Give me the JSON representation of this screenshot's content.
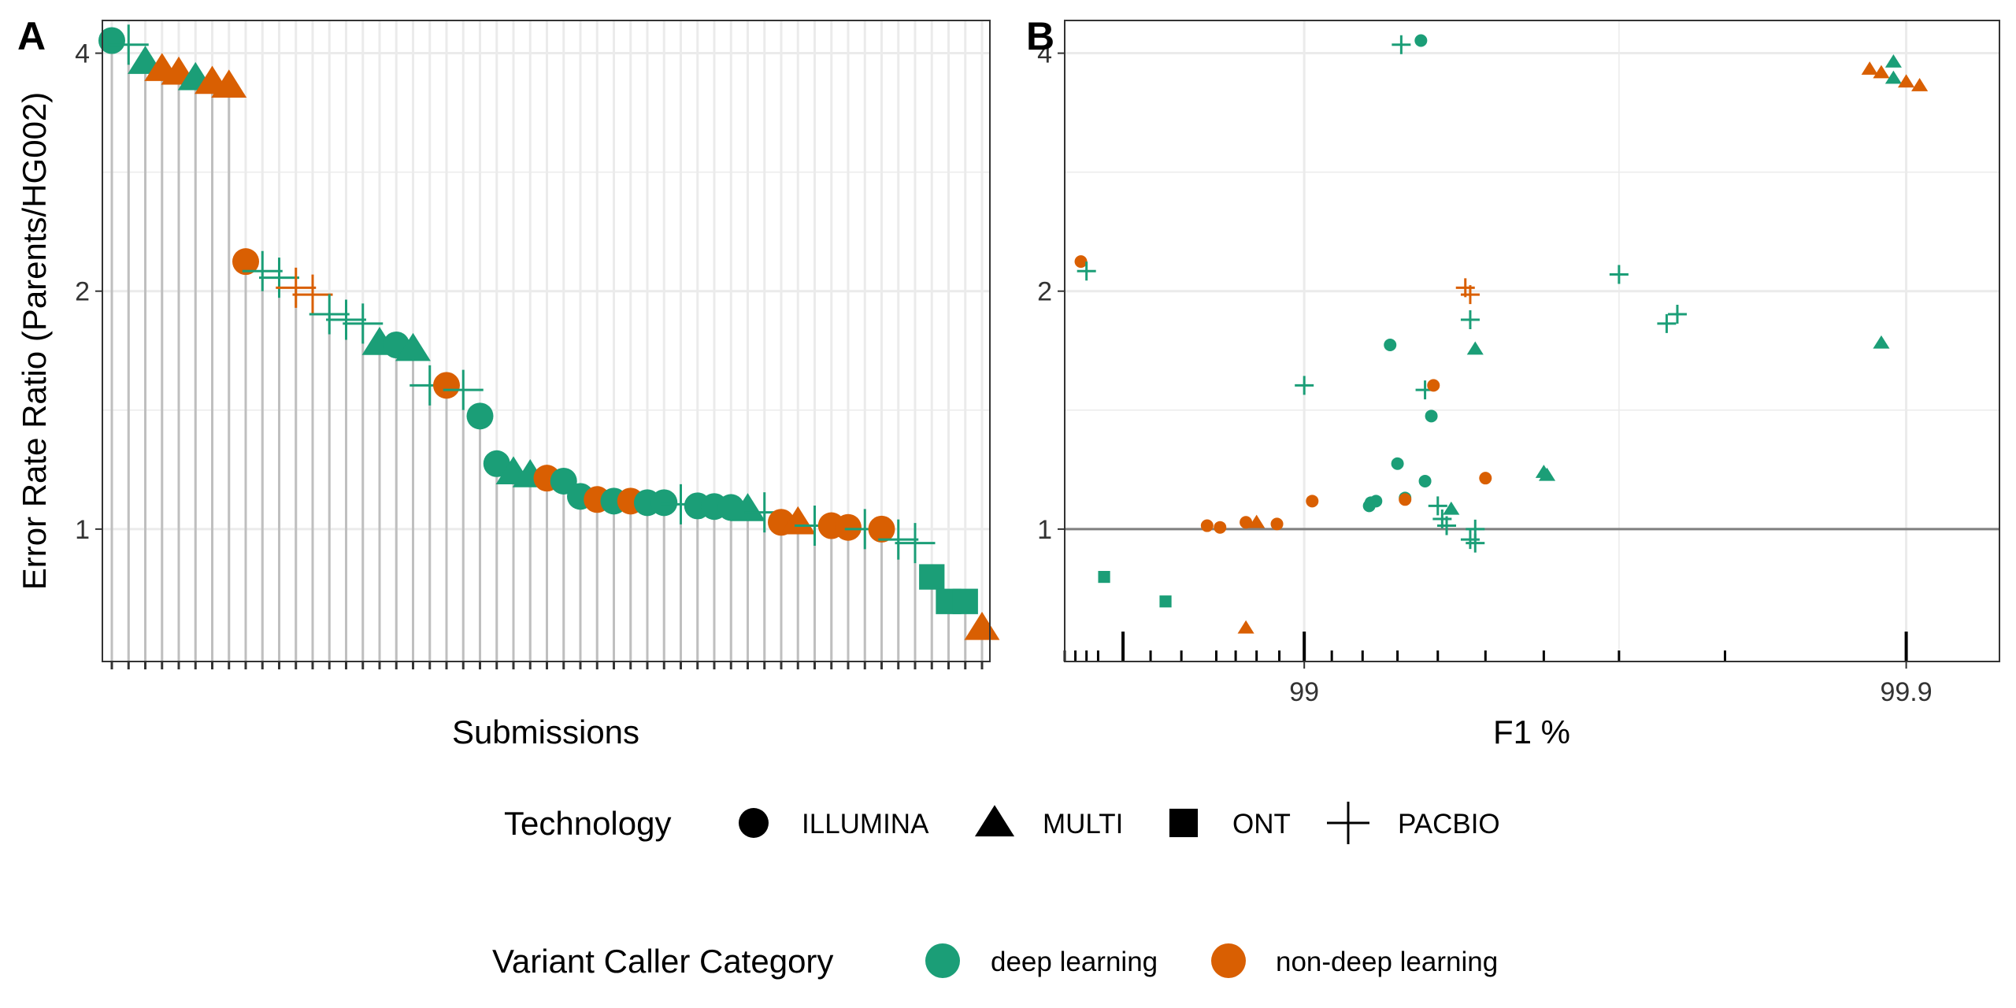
{
  "colors": {
    "deep learning": "#1b9e77",
    "non-deep learning": "#d95f02",
    "reference_line": "#808080",
    "gridline": "#ebebeb",
    "panel_border": "#333333",
    "legend_key": "#000000"
  },
  "chart_data": [
    {
      "panel": "A",
      "type": "scatter",
      "xlabel": "Submissions",
      "ylabel": "Error Rate Ratio (Parents/HG002)",
      "ylim": [
        0.68,
        4.4
      ],
      "y_scale": "log",
      "yticks": [
        1,
        2,
        4
      ],
      "ytick_labels": [
        "1",
        "2",
        "4"
      ],
      "grid": true,
      "stems_to_bottom": true,
      "points": [
        {
          "rank": 1,
          "y": 4.15,
          "tech": "ILLUMINA",
          "category": "deep learning"
        },
        {
          "rank": 2,
          "y": 4.1,
          "tech": "PACBIO",
          "category": "deep learning"
        },
        {
          "rank": 3,
          "y": 3.9,
          "tech": "MULTI",
          "category": "deep learning"
        },
        {
          "rank": 4,
          "y": 3.82,
          "tech": "MULTI",
          "category": "non-deep learning"
        },
        {
          "rank": 5,
          "y": 3.78,
          "tech": "MULTI",
          "category": "non-deep learning"
        },
        {
          "rank": 6,
          "y": 3.72,
          "tech": "MULTI",
          "category": "deep learning"
        },
        {
          "rank": 7,
          "y": 3.68,
          "tech": "MULTI",
          "category": "non-deep learning"
        },
        {
          "rank": 8,
          "y": 3.64,
          "tech": "MULTI",
          "category": "non-deep learning"
        },
        {
          "rank": 9,
          "y": 2.18,
          "tech": "ILLUMINA",
          "category": "non-deep learning"
        },
        {
          "rank": 10,
          "y": 2.12,
          "tech": "PACBIO",
          "category": "deep learning"
        },
        {
          "rank": 11,
          "y": 2.08,
          "tech": "PACBIO",
          "category": "deep learning"
        },
        {
          "rank": 12,
          "y": 2.02,
          "tech": "PACBIO",
          "category": "non-deep learning"
        },
        {
          "rank": 13,
          "y": 1.98,
          "tech": "PACBIO",
          "category": "non-deep learning"
        },
        {
          "rank": 14,
          "y": 1.87,
          "tech": "PACBIO",
          "category": "deep learning"
        },
        {
          "rank": 15,
          "y": 1.84,
          "tech": "PACBIO",
          "category": "deep learning"
        },
        {
          "rank": 16,
          "y": 1.82,
          "tech": "PACBIO",
          "category": "deep learning"
        },
        {
          "rank": 17,
          "y": 1.72,
          "tech": "MULTI",
          "category": "deep learning"
        },
        {
          "rank": 18,
          "y": 1.71,
          "tech": "ILLUMINA",
          "category": "deep learning"
        },
        {
          "rank": 19,
          "y": 1.69,
          "tech": "MULTI",
          "category": "deep learning"
        },
        {
          "rank": 20,
          "y": 1.52,
          "tech": "PACBIO",
          "category": "deep learning"
        },
        {
          "rank": 21,
          "y": 1.52,
          "tech": "ILLUMINA",
          "category": "non-deep learning"
        },
        {
          "rank": 22,
          "y": 1.5,
          "tech": "PACBIO",
          "category": "deep learning"
        },
        {
          "rank": 23,
          "y": 1.39,
          "tech": "ILLUMINA",
          "category": "deep learning"
        },
        {
          "rank": 24,
          "y": 1.21,
          "tech": "ILLUMINA",
          "category": "deep learning"
        },
        {
          "rank": 25,
          "y": 1.18,
          "tech": "MULTI",
          "category": "deep learning"
        },
        {
          "rank": 26,
          "y": 1.17,
          "tech": "MULTI",
          "category": "deep learning"
        },
        {
          "rank": 27,
          "y": 1.16,
          "tech": "ILLUMINA",
          "category": "non-deep learning"
        },
        {
          "rank": 28,
          "y": 1.15,
          "tech": "ILLUMINA",
          "category": "deep learning"
        },
        {
          "rank": 29,
          "y": 1.1,
          "tech": "ILLUMINA",
          "category": "deep learning"
        },
        {
          "rank": 30,
          "y": 1.09,
          "tech": "ILLUMINA",
          "category": "non-deep learning"
        },
        {
          "rank": 31,
          "y": 1.085,
          "tech": "ILLUMINA",
          "category": "deep learning"
        },
        {
          "rank": 32,
          "y": 1.085,
          "tech": "ILLUMINA",
          "category": "non-deep learning"
        },
        {
          "rank": 33,
          "y": 1.08,
          "tech": "ILLUMINA",
          "category": "deep learning"
        },
        {
          "rank": 34,
          "y": 1.08,
          "tech": "ILLUMINA",
          "category": "deep learning"
        },
        {
          "rank": 35,
          "y": 1.075,
          "tech": "PACBIO",
          "category": "deep learning"
        },
        {
          "rank": 36,
          "y": 1.07,
          "tech": "ILLUMINA",
          "category": "deep learning"
        },
        {
          "rank": 37,
          "y": 1.068,
          "tech": "ILLUMINA",
          "category": "deep learning"
        },
        {
          "rank": 38,
          "y": 1.065,
          "tech": "ILLUMINA",
          "category": "deep learning"
        },
        {
          "rank": 39,
          "y": 1.06,
          "tech": "MULTI",
          "category": "deep learning"
        },
        {
          "rank": 40,
          "y": 1.05,
          "tech": "PACBIO",
          "category": "deep learning"
        },
        {
          "rank": 41,
          "y": 1.02,
          "tech": "ILLUMINA",
          "category": "non-deep learning"
        },
        {
          "rank": 42,
          "y": 1.02,
          "tech": "MULTI",
          "category": "non-deep learning"
        },
        {
          "rank": 43,
          "y": 1.01,
          "tech": "PACBIO",
          "category": "deep learning"
        },
        {
          "rank": 44,
          "y": 1.01,
          "tech": "ILLUMINA",
          "category": "non-deep learning"
        },
        {
          "rank": 45,
          "y": 1.005,
          "tech": "ILLUMINA",
          "category": "non-deep learning"
        },
        {
          "rank": 46,
          "y": 1.0,
          "tech": "PACBIO",
          "category": "deep learning"
        },
        {
          "rank": 47,
          "y": 1.0,
          "tech": "ILLUMINA",
          "category": "non-deep learning"
        },
        {
          "rank": 48,
          "y": 0.97,
          "tech": "PACBIO",
          "category": "deep learning"
        },
        {
          "rank": 49,
          "y": 0.96,
          "tech": "PACBIO",
          "category": "deep learning"
        },
        {
          "rank": 50,
          "y": 0.87,
          "tech": "ONT",
          "category": "deep learning"
        },
        {
          "rank": 51,
          "y": 0.81,
          "tech": "ONT",
          "category": "deep learning"
        },
        {
          "rank": 52,
          "y": 0.81,
          "tech": "ONT",
          "category": "deep learning"
        },
        {
          "rank": 53,
          "y": 0.75,
          "tech": "MULTI",
          "category": "non-deep learning"
        }
      ]
    },
    {
      "panel": "B",
      "type": "scatter",
      "xlabel": "F1 %",
      "ylabel": "",
      "x_scale": "phred",
      "xlim": [
        97.5,
        99.93
      ],
      "xticks": [
        99,
        99.9
      ],
      "xtick_labels": [
        "99",
        "99.9"
      ],
      "ylim": [
        0.68,
        4.4
      ],
      "y_scale": "log",
      "yticks": [
        1,
        2,
        4
      ],
      "ytick_labels": [
        "1",
        "2",
        "4"
      ],
      "grid": true,
      "hline": 1,
      "rug_minor": [
        97.5,
        97.6,
        97.7,
        97.8,
        98.0,
        98.2,
        98.4,
        98.6,
        98.7,
        98.8,
        98.9,
        99.1,
        99.2,
        99.3,
        99.4,
        99.5,
        99.6,
        99.7,
        99.8
      ],
      "rug_major": [
        98,
        99,
        99.9
      ],
      "points": [
        {
          "x": 97.65,
          "y": 2.18,
          "tech": "ILLUMINA",
          "category": "non-deep learning"
        },
        {
          "x": 97.7,
          "y": 2.12,
          "tech": "PACBIO",
          "category": "deep learning"
        },
        {
          "x": 97.85,
          "y": 0.87,
          "tech": "ONT",
          "category": "deep learning"
        },
        {
          "x": 98.3,
          "y": 0.81,
          "tech": "ONT",
          "category": "deep learning"
        },
        {
          "x": 98.55,
          "y": 1.01,
          "tech": "ILLUMINA",
          "category": "non-deep learning"
        },
        {
          "x": 98.62,
          "y": 1.005,
          "tech": "ILLUMINA",
          "category": "non-deep learning"
        },
        {
          "x": 98.75,
          "y": 1.02,
          "tech": "ILLUMINA",
          "category": "non-deep learning"
        },
        {
          "x": 98.75,
          "y": 0.75,
          "tech": "MULTI",
          "category": "non-deep learning"
        },
        {
          "x": 98.8,
          "y": 1.02,
          "tech": "MULTI",
          "category": "non-deep learning"
        },
        {
          "x": 98.89,
          "y": 1.015,
          "tech": "ILLUMINA",
          "category": "non-deep learning"
        },
        {
          "x": 99.0,
          "y": 1.52,
          "tech": "PACBIO",
          "category": "deep learning"
        },
        {
          "x": 99.03,
          "y": 1.085,
          "tech": "ILLUMINA",
          "category": "non-deep learning"
        },
        {
          "x": 99.22,
          "y": 1.07,
          "tech": "ILLUMINA",
          "category": "deep learning"
        },
        {
          "x": 99.225,
          "y": 1.08,
          "tech": "ILLUMINA",
          "category": "deep learning"
        },
        {
          "x": 99.24,
          "y": 1.085,
          "tech": "ILLUMINA",
          "category": "deep learning"
        },
        {
          "x": 99.28,
          "y": 1.71,
          "tech": "ILLUMINA",
          "category": "deep learning"
        },
        {
          "x": 99.3,
          "y": 1.21,
          "tech": "ILLUMINA",
          "category": "deep learning"
        },
        {
          "x": 99.31,
          "y": 4.1,
          "tech": "PACBIO",
          "category": "deep learning"
        },
        {
          "x": 99.32,
          "y": 1.095,
          "tech": "ILLUMINA",
          "category": "deep learning"
        },
        {
          "x": 99.32,
          "y": 1.09,
          "tech": "ILLUMINA",
          "category": "non-deep learning"
        },
        {
          "x": 99.36,
          "y": 4.15,
          "tech": "ILLUMINA",
          "category": "deep learning"
        },
        {
          "x": 99.37,
          "y": 1.15,
          "tech": "ILLUMINA",
          "category": "deep learning"
        },
        {
          "x": 99.37,
          "y": 1.5,
          "tech": "PACBIO",
          "category": "deep learning"
        },
        {
          "x": 99.385,
          "y": 1.39,
          "tech": "ILLUMINA",
          "category": "deep learning"
        },
        {
          "x": 99.39,
          "y": 1.52,
          "tech": "ILLUMINA",
          "category": "non-deep learning"
        },
        {
          "x": 99.4,
          "y": 1.07,
          "tech": "PACBIO",
          "category": "deep learning"
        },
        {
          "x": 99.41,
          "y": 1.03,
          "tech": "PACBIO",
          "category": "deep learning"
        },
        {
          "x": 99.42,
          "y": 1.01,
          "tech": "PACBIO",
          "category": "deep learning"
        },
        {
          "x": 99.43,
          "y": 1.06,
          "tech": "MULTI",
          "category": "deep learning"
        },
        {
          "x": 99.46,
          "y": 2.02,
          "tech": "PACBIO",
          "category": "non-deep learning"
        },
        {
          "x": 99.47,
          "y": 1.98,
          "tech": "PACBIO",
          "category": "non-deep learning"
        },
        {
          "x": 99.47,
          "y": 1.84,
          "tech": "PACBIO",
          "category": "deep learning"
        },
        {
          "x": 99.47,
          "y": 0.97,
          "tech": "PACBIO",
          "category": "deep learning"
        },
        {
          "x": 99.48,
          "y": 1.0,
          "tech": "PACBIO",
          "category": "deep learning"
        },
        {
          "x": 99.48,
          "y": 0.96,
          "tech": "PACBIO",
          "category": "deep learning"
        },
        {
          "x": 99.48,
          "y": 1.69,
          "tech": "MULTI",
          "category": "deep learning"
        },
        {
          "x": 99.5,
          "y": 1.16,
          "tech": "ILLUMINA",
          "category": "non-deep learning"
        },
        {
          "x": 99.6,
          "y": 1.18,
          "tech": "MULTI",
          "category": "deep learning"
        },
        {
          "x": 99.605,
          "y": 1.17,
          "tech": "MULTI",
          "category": "deep learning"
        },
        {
          "x": 99.7,
          "y": 2.1,
          "tech": "PACBIO",
          "category": "deep learning"
        },
        {
          "x": 99.75,
          "y": 1.82,
          "tech": "PACBIO",
          "category": "deep learning"
        },
        {
          "x": 99.76,
          "y": 1.87,
          "tech": "PACBIO",
          "category": "deep learning"
        },
        {
          "x": 99.885,
          "y": 3.82,
          "tech": "MULTI",
          "category": "non-deep learning"
        },
        {
          "x": 99.89,
          "y": 3.78,
          "tech": "MULTI",
          "category": "non-deep learning"
        },
        {
          "x": 99.89,
          "y": 1.72,
          "tech": "MULTI",
          "category": "deep learning"
        },
        {
          "x": 99.895,
          "y": 3.9,
          "tech": "MULTI",
          "category": "deep learning"
        },
        {
          "x": 99.895,
          "y": 3.72,
          "tech": "MULTI",
          "category": "deep learning"
        },
        {
          "x": 99.9,
          "y": 3.68,
          "tech": "MULTI",
          "category": "non-deep learning"
        },
        {
          "x": 99.905,
          "y": 3.64,
          "tech": "MULTI",
          "category": "non-deep learning"
        }
      ]
    }
  ],
  "legend": {
    "technology_title": "Technology",
    "technology_items": [
      {
        "label": "ILLUMINA",
        "shape": "ILLUMINA"
      },
      {
        "label": "MULTI",
        "shape": "MULTI"
      },
      {
        "label": "ONT",
        "shape": "ONT"
      },
      {
        "label": "PACBIO",
        "shape": "PACBIO"
      }
    ],
    "category_title": "Variant Caller Category",
    "category_items": [
      {
        "label": "deep learning",
        "color": "#1b9e77"
      },
      {
        "label": "non-deep learning",
        "color": "#d95f02"
      }
    ]
  }
}
